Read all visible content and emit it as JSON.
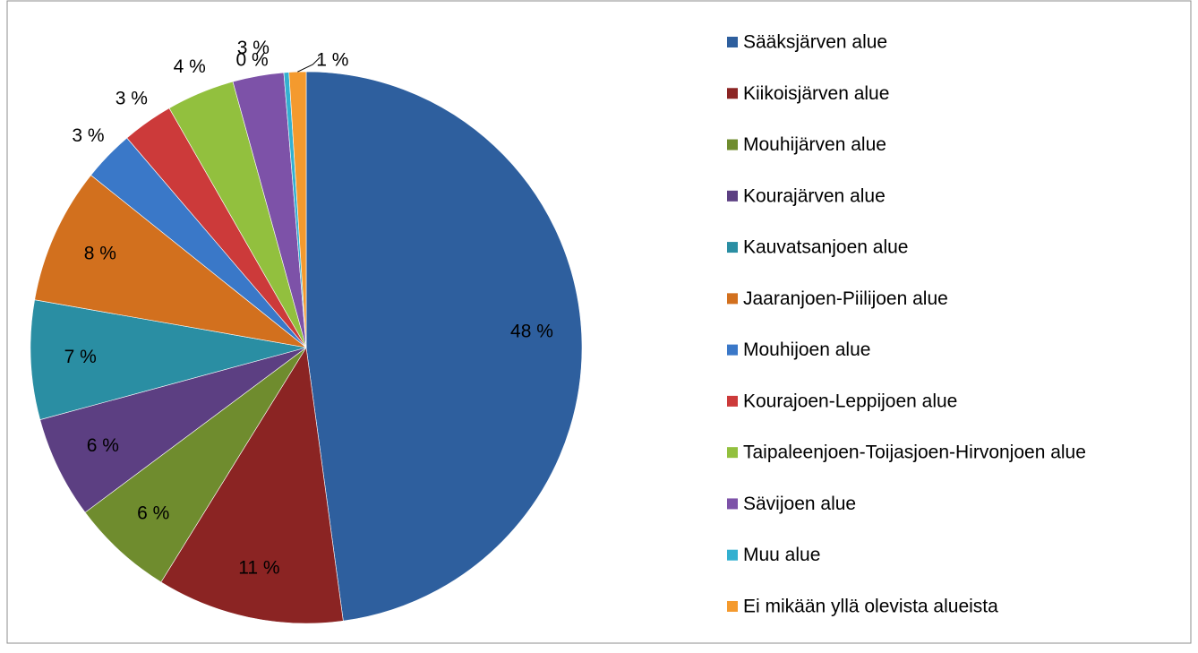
{
  "chart_data": {
    "type": "pie",
    "categories": [
      "Sääksjärven alue",
      "Kiikoisjärven alue",
      "Mouhijärven alue",
      "Kourajärven alue",
      "Kauvatsanjoen alue",
      "Jaaranjoen-Piilijoen alue",
      "Mouhijoen alue",
      "Kourajoen-Leppijoen alue",
      "Taipaleenjoen-Toijasjoen-Hirvonjoen alue",
      "Sävijoen alue",
      "Muu alue",
      "Ei mikään yllä olevista alueista"
    ],
    "values": [
      48,
      11,
      6,
      6,
      7,
      8,
      3,
      3,
      4,
      3,
      0.3,
      1
    ],
    "value_labels": [
      "48 %",
      "11 %",
      "6 %",
      "6 %",
      "7 %",
      "8 %",
      "3 %",
      "3 %",
      "4 %",
      "3 %",
      "0 %",
      "1 %"
    ],
    "colors": [
      "#2e5f9e",
      "#8b2423",
      "#6f8c2e",
      "#5c3f82",
      "#2a8ea3",
      "#d2701e",
      "#3a78c8",
      "#cc3a3a",
      "#92c03e",
      "#7d52a8",
      "#33b0d0",
      "#f49a2e"
    ],
    "legend": "right"
  }
}
